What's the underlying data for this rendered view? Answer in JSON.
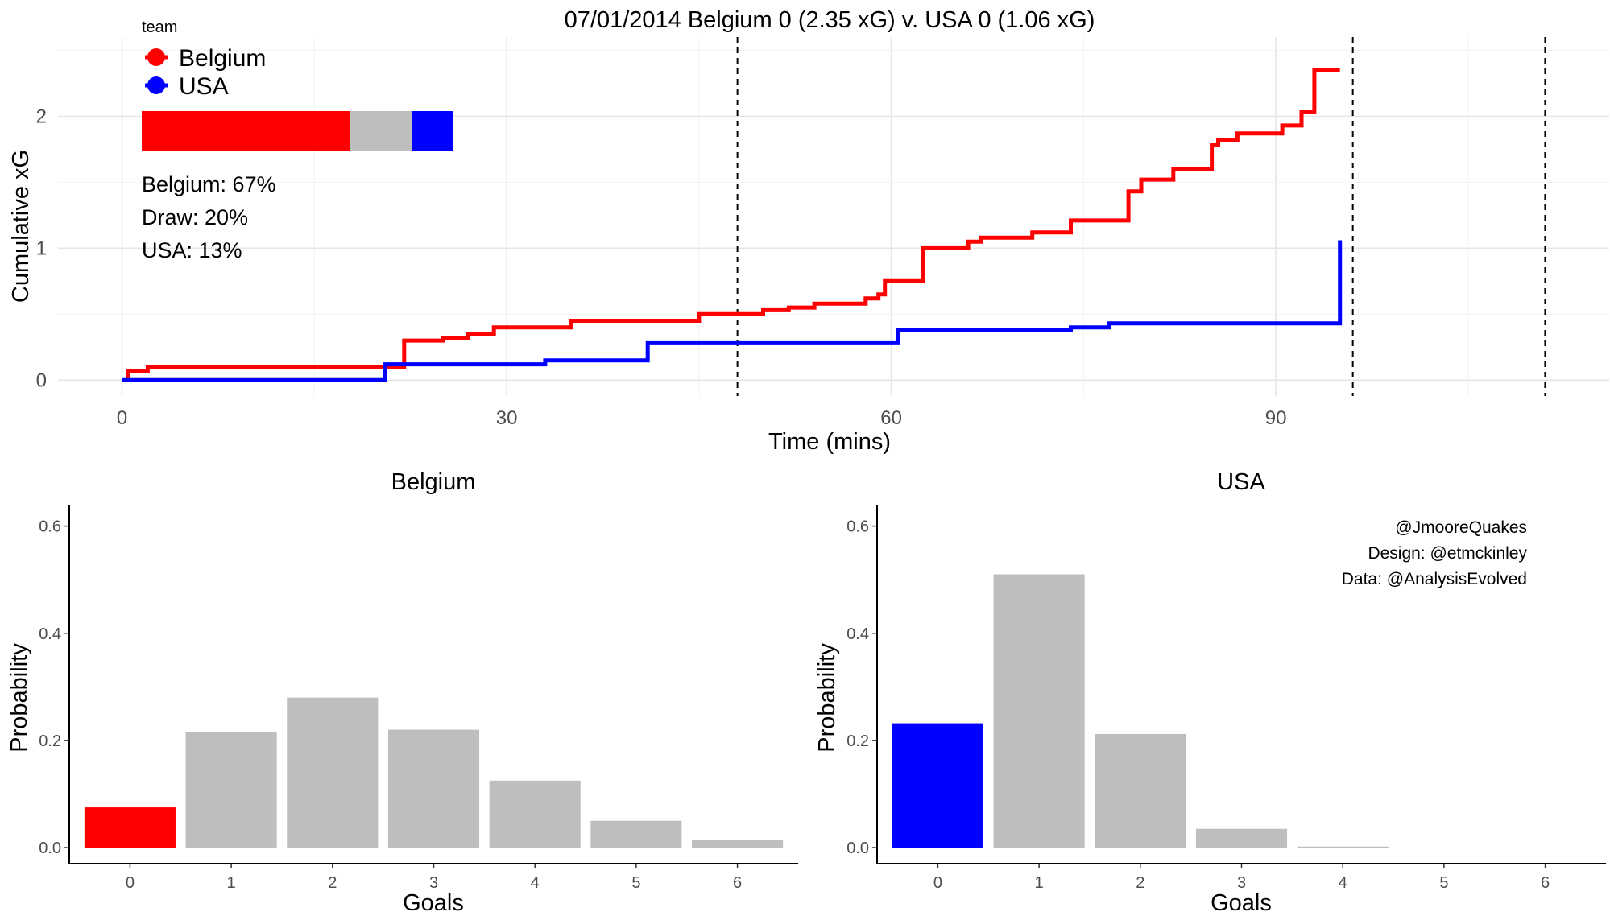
{
  "chart_data": [
    {
      "type": "line",
      "step": true,
      "title": "07/01/2014 Belgium 0 (2.35 xG) v. USA 0 (1.06 xG)",
      "xlabel": "Time (mins)",
      "ylabel": "Cumulative xG",
      "xlim": [
        -5,
        116
      ],
      "ylim": [
        -0.12,
        2.6
      ],
      "xticks": [
        "0",
        "30",
        "60",
        "90"
      ],
      "yticks": [
        "0",
        "1",
        "2"
      ],
      "grid": true,
      "legend": {
        "title": "team",
        "position": "top-left"
      },
      "vlines": [
        48,
        96,
        111
      ],
      "series": [
        {
          "name": "Belgium",
          "color": "#ff0000",
          "points": [
            [
              0.5,
              0
            ],
            [
              0.5,
              0.07
            ],
            [
              2,
              0.07
            ],
            [
              2,
              0.1
            ],
            [
              22,
              0.1
            ],
            [
              22,
              0.3
            ],
            [
              25,
              0.3
            ],
            [
              25,
              0.32
            ],
            [
              27,
              0.32
            ],
            [
              27,
              0.35
            ],
            [
              29,
              0.35
            ],
            [
              29,
              0.4
            ],
            [
              35,
              0.4
            ],
            [
              35,
              0.45
            ],
            [
              45,
              0.45
            ],
            [
              45,
              0.5
            ],
            [
              50,
              0.5
            ],
            [
              50,
              0.53
            ],
            [
              52,
              0.53
            ],
            [
              52,
              0.55
            ],
            [
              54,
              0.55
            ],
            [
              54,
              0.58
            ],
            [
              58,
              0.58
            ],
            [
              58,
              0.62
            ],
            [
              59,
              0.62
            ],
            [
              59,
              0.65
            ],
            [
              59.5,
              0.65
            ],
            [
              59.5,
              0.75
            ],
            [
              62.5,
              0.75
            ],
            [
              62.5,
              1.0
            ],
            [
              66,
              1.0
            ],
            [
              66,
              1.05
            ],
            [
              67,
              1.05
            ],
            [
              67,
              1.08
            ],
            [
              71,
              1.08
            ],
            [
              71,
              1.12
            ],
            [
              74,
              1.12
            ],
            [
              74,
              1.21
            ],
            [
              78.5,
              1.21
            ],
            [
              78.5,
              1.43
            ],
            [
              79.5,
              1.43
            ],
            [
              79.5,
              1.52
            ],
            [
              82,
              1.52
            ],
            [
              82,
              1.6
            ],
            [
              85,
              1.6
            ],
            [
              85,
              1.78
            ],
            [
              85.5,
              1.78
            ],
            [
              85.5,
              1.82
            ],
            [
              87,
              1.82
            ],
            [
              87,
              1.87
            ],
            [
              90.5,
              1.87
            ],
            [
              90.5,
              1.93
            ],
            [
              92,
              1.93
            ],
            [
              92,
              2.03
            ],
            [
              93,
              2.03
            ],
            [
              93,
              2.35
            ],
            [
              95,
              2.35
            ]
          ]
        },
        {
          "name": "USA",
          "color": "#0000ff",
          "points": [
            [
              0,
              0
            ],
            [
              20.5,
              0
            ],
            [
              20.5,
              0.12
            ],
            [
              33,
              0.12
            ],
            [
              33,
              0.15
            ],
            [
              41,
              0.15
            ],
            [
              41,
              0.28
            ],
            [
              60.5,
              0.28
            ],
            [
              60.5,
              0.38
            ],
            [
              74,
              0.38
            ],
            [
              74,
              0.4
            ],
            [
              77,
              0.4
            ],
            [
              77,
              0.43
            ],
            [
              95,
              0.43
            ],
            [
              95,
              1.06
            ]
          ]
        }
      ],
      "win_probability": {
        "bar": [
          {
            "name": "Belgium",
            "value": 0.67,
            "color": "#ff0000"
          },
          {
            "name": "Draw",
            "value": 0.2,
            "color": "#bebebe"
          },
          {
            "name": "USA",
            "value": 0.13,
            "color": "#0000ff"
          }
        ],
        "labels": [
          "Belgium: 67%",
          "Draw: 20%",
          "USA: 13%"
        ]
      }
    },
    {
      "type": "bar",
      "title": "Belgium",
      "xlabel": "Goals",
      "ylabel": "Probability",
      "categories": [
        "0",
        "1",
        "2",
        "3",
        "4",
        "5",
        "6"
      ],
      "values": [
        0.075,
        0.215,
        0.28,
        0.22,
        0.125,
        0.05,
        0.015
      ],
      "highlight_index": 0,
      "highlight_color": "#ff0000",
      "bar_color": "#bebebe",
      "ylim": [
        -0.03,
        0.64
      ],
      "yticks": [
        "0.0",
        "0.2",
        "0.4",
        "0.6"
      ],
      "grid": false
    },
    {
      "type": "bar",
      "title": "USA",
      "xlabel": "Goals",
      "ylabel": "Probability",
      "categories": [
        "0",
        "1",
        "2",
        "3",
        "4",
        "5",
        "6"
      ],
      "values": [
        0.232,
        0.51,
        0.212,
        0.035,
        0.002,
        0,
        0
      ],
      "highlight_index": 0,
      "highlight_color": "#0000ff",
      "bar_color": "#bebebe",
      "ylim": [
        -0.03,
        0.64
      ],
      "yticks": [
        "0.0",
        "0.2",
        "0.4",
        "0.6"
      ],
      "grid": false,
      "credits": [
        "@JmooreQuakes",
        "Design: @etmckinley",
        "Data: @AnalysisEvolved"
      ]
    }
  ]
}
